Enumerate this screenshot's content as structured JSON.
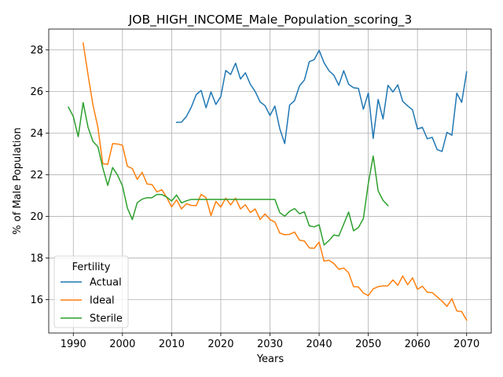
{
  "chart_data": {
    "type": "line",
    "title": "JOB_HIGH_INCOME_Male_Population_scoring_3",
    "xlabel": "Years",
    "ylabel": "% of Male Population",
    "xlim": [
      1985,
      2075
    ],
    "ylim": [
      14.4,
      29.0
    ],
    "xticks": [
      1990,
      2000,
      2010,
      2020,
      2030,
      2040,
      2050,
      2060,
      2070
    ],
    "yticks": [
      16,
      18,
      20,
      22,
      24,
      26,
      28
    ],
    "grid": true,
    "legend": {
      "title": "Fertility",
      "placement": "lower-left"
    },
    "series": [
      {
        "name": "Actual",
        "color": "#1f77b4",
        "x": [
          2011,
          2012,
          2013,
          2014,
          2015,
          2016,
          2017,
          2018,
          2019,
          2020,
          2021,
          2022,
          2023,
          2024,
          2025,
          2026,
          2027,
          2028,
          2029,
          2030,
          2031,
          2032,
          2033,
          2034,
          2035,
          2036,
          2037,
          2038,
          2039,
          2040,
          2041,
          2042,
          2043,
          2044,
          2045,
          2046,
          2047,
          2048,
          2049,
          2050,
          2051,
          2052,
          2053,
          2054,
          2055,
          2056,
          2057,
          2058,
          2059,
          2060,
          2061,
          2062,
          2063,
          2064,
          2065,
          2066,
          2067,
          2068,
          2069,
          2070
        ],
        "values": [
          24.52,
          24.53,
          24.8,
          25.25,
          25.85,
          26.05,
          25.22,
          25.98,
          25.38,
          25.76,
          27.01,
          26.82,
          27.36,
          26.6,
          26.9,
          26.35,
          26.0,
          25.5,
          25.32,
          24.85,
          25.3,
          24.21,
          23.5,
          25.35,
          25.56,
          26.27,
          26.55,
          27.43,
          27.53,
          27.98,
          27.38,
          27.0,
          26.78,
          26.3,
          27.0,
          26.35,
          26.18,
          26.15,
          25.15,
          25.93,
          23.75,
          25.62,
          24.68,
          26.3,
          25.98,
          26.32,
          25.53,
          25.31,
          25.12,
          24.2,
          24.28,
          23.73,
          23.8,
          23.21,
          23.12,
          24.04,
          23.9,
          25.92,
          25.48,
          26.95
        ]
      },
      {
        "name": "Ideal",
        "color": "#ff7f0e",
        "x": [
          1992,
          1993,
          1994,
          1995,
          1996,
          1997,
          1998,
          1999,
          2000,
          2001,
          2002,
          2003,
          2004,
          2005,
          2006,
          2007,
          2008,
          2009,
          2010,
          2011,
          2012,
          2013,
          2014,
          2015,
          2016,
          2017,
          2018,
          2019,
          2020,
          2021,
          2022,
          2023,
          2024,
          2025,
          2026,
          2027,
          2028,
          2029,
          2030,
          2031,
          2032,
          2033,
          2034,
          2035,
          2036,
          2037,
          2038,
          2039,
          2040,
          2041,
          2042,
          2043,
          2044,
          2045,
          2046,
          2047,
          2048,
          2049,
          2050,
          2051,
          2052,
          2053,
          2054,
          2055,
          2056,
          2057,
          2058,
          2059,
          2060,
          2061,
          2062,
          2063,
          2064,
          2065,
          2066,
          2067,
          2068,
          2069,
          2070
        ],
        "values": [
          28.33,
          26.8,
          25.35,
          24.28,
          22.53,
          22.5,
          23.5,
          23.48,
          23.42,
          22.41,
          22.3,
          21.78,
          22.12,
          21.56,
          21.53,
          21.18,
          21.28,
          20.91,
          20.46,
          20.8,
          20.36,
          20.61,
          20.53,
          20.52,
          21.06,
          20.9,
          20.04,
          20.72,
          20.45,
          20.88,
          20.55,
          20.88,
          20.36,
          20.56,
          20.19,
          20.36,
          19.85,
          20.12,
          19.85,
          19.73,
          19.2,
          19.12,
          19.14,
          19.25,
          18.86,
          18.82,
          18.49,
          18.47,
          18.77,
          17.85,
          17.9,
          17.74,
          17.46,
          17.52,
          17.29,
          16.63,
          16.61,
          16.32,
          16.2,
          16.52,
          16.63,
          16.66,
          16.67,
          16.95,
          16.69,
          17.14,
          16.72,
          17.05,
          16.5,
          16.65,
          16.36,
          16.34,
          16.14,
          15.93,
          15.68,
          16.05,
          15.46,
          15.43,
          15.02
        ]
      },
      {
        "name": "Sterile",
        "color": "#2ca02c",
        "x": [
          1989,
          1990,
          1991,
          1992,
          1993,
          1994,
          1995,
          1996,
          1997,
          1998,
          1999,
          2000,
          2001,
          2002,
          2003,
          2004,
          2005,
          2006,
          2007,
          2008,
          2009,
          2010,
          2011,
          2012,
          2013,
          2014,
          2015,
          2016,
          2017,
          2018,
          2019,
          2020,
          2021,
          2022,
          2023,
          2024,
          2025,
          2026,
          2027,
          2028,
          2029,
          2030,
          2031,
          2032,
          2033,
          2034,
          2035,
          2036,
          2037,
          2038,
          2039,
          2040,
          2041,
          2042,
          2043,
          2044,
          2045,
          2046,
          2047,
          2048,
          2049,
          2050,
          2051,
          2052,
          2053,
          2054
        ],
        "values": [
          25.25,
          24.8,
          23.83,
          25.47,
          24.28,
          23.6,
          23.35,
          22.33,
          21.49,
          22.35,
          21.98,
          21.47,
          20.4,
          19.85,
          20.66,
          20.83,
          20.9,
          20.9,
          21.06,
          21.05,
          20.93,
          20.74,
          21.03,
          20.65,
          20.75,
          20.82,
          20.82,
          20.82,
          20.82,
          20.82,
          20.82,
          20.82,
          20.82,
          20.82,
          20.82,
          20.82,
          20.82,
          20.82,
          20.82,
          20.82,
          20.82,
          20.82,
          20.82,
          20.18,
          20.01,
          20.25,
          20.38,
          20.13,
          20.22,
          19.55,
          19.5,
          19.6,
          18.63,
          18.84,
          19.11,
          19.06,
          19.63,
          20.21,
          19.31,
          19.47,
          19.9,
          21.58,
          22.9,
          21.23,
          20.77,
          20.52
        ]
      }
    ]
  }
}
